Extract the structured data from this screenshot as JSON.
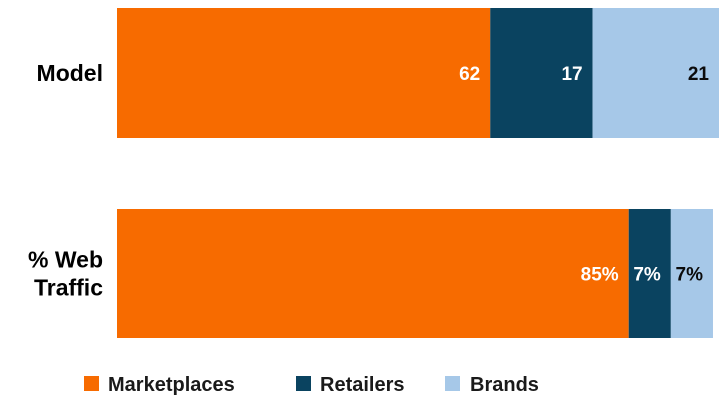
{
  "chart_data": {
    "type": "bar",
    "orientation": "horizontal",
    "stacked": "percent",
    "categories": [
      [
        "Model"
      ],
      [
        "% Web",
        "Traffic"
      ]
    ],
    "series": [
      {
        "name": "Marketplaces",
        "color": "#f76b00",
        "label_color": "#ffffff",
        "values": [
          62,
          85
        ],
        "labels": [
          "62",
          "85%"
        ]
      },
      {
        "name": "Retailers",
        "color": "#0a4360",
        "label_color": "#ffffff",
        "values": [
          17,
          7
        ],
        "labels": [
          "17",
          "7%"
        ]
      },
      {
        "name": "Brands",
        "color": "#a6c8e8",
        "label_color": "#0b0b0b",
        "values": [
          21,
          7
        ],
        "labels": [
          "21",
          "7%"
        ]
      }
    ],
    "xlim": [
      0,
      100
    ],
    "grid": false,
    "legend": "bottom"
  }
}
